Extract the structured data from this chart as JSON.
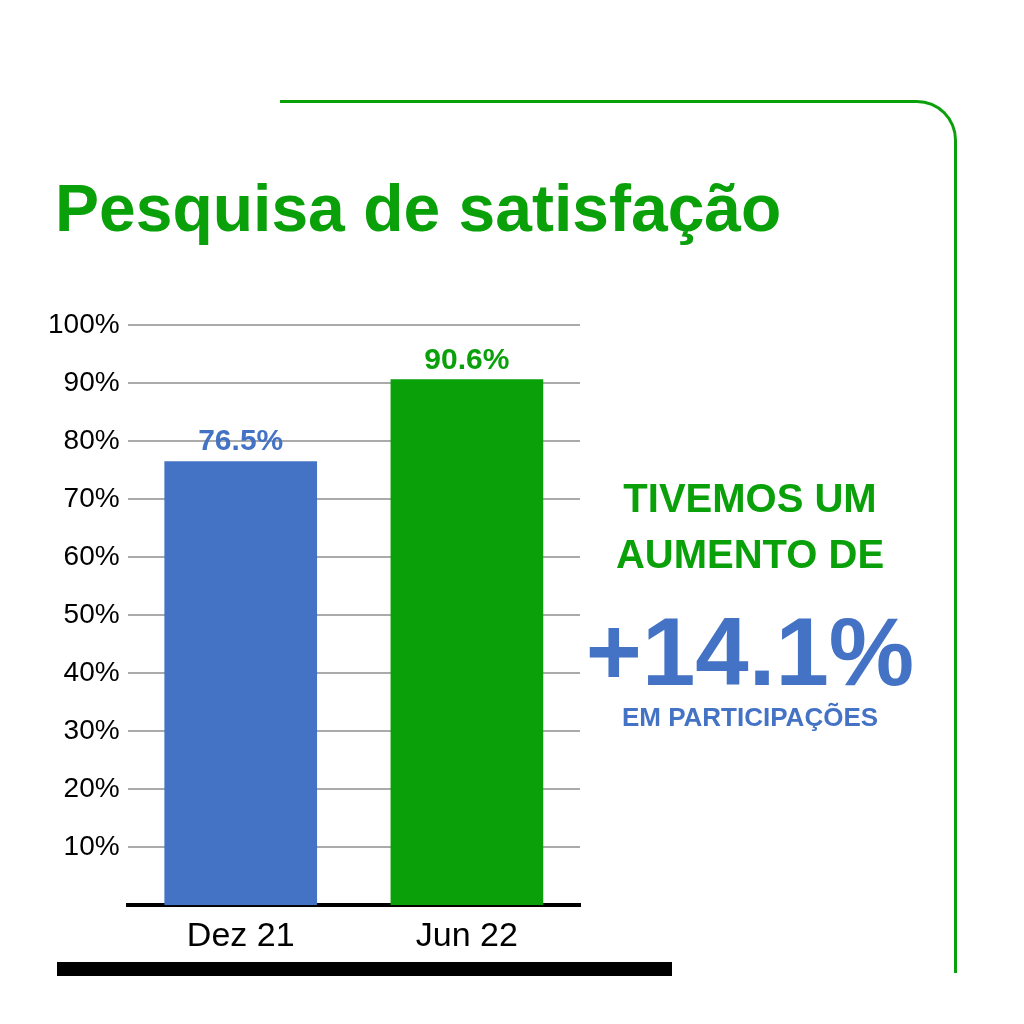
{
  "chart_data": {
    "type": "bar",
    "title": "Pesquisa de satisfação",
    "categories": [
      "Dez 21",
      "Jun 22"
    ],
    "values": [
      76.5,
      90.6
    ],
    "colors": [
      "#4472c4",
      "#0aa00a"
    ],
    "value_labels": [
      "76.5%",
      "90.6%"
    ],
    "ylim": [
      0,
      100
    ],
    "yticks": [
      {
        "value": 10,
        "label": "10%"
      },
      {
        "value": 20,
        "label": "20%"
      },
      {
        "value": 30,
        "label": "30%"
      },
      {
        "value": 40,
        "label": "40%"
      },
      {
        "value": 50,
        "label": "50%"
      },
      {
        "value": 60,
        "label": "60%"
      },
      {
        "value": 70,
        "label": "70%"
      },
      {
        "value": 80,
        "label": "80%"
      },
      {
        "value": 90,
        "label": "90%"
      },
      {
        "value": 100,
        "label": "100%"
      }
    ],
    "grid": "y",
    "annotations": [
      "TIVEMOS UM AUMENTO DE",
      "+14.1%",
      "EM PARTICIPAÇÕES"
    ]
  }
}
